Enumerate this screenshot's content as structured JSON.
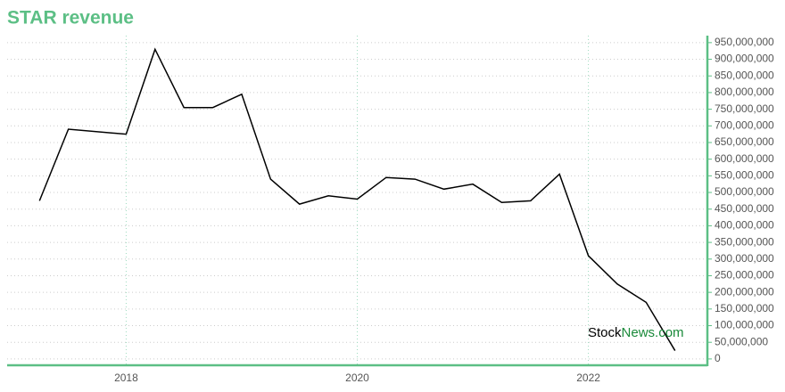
{
  "chart_data": {
    "type": "line",
    "title": "STAR revenue",
    "x": [
      2017.25,
      2017.5,
      2018.0,
      2018.25,
      2018.5,
      2018.75,
      2019.0,
      2019.25,
      2019.5,
      2019.75,
      2020.0,
      2020.25,
      2020.5,
      2020.75,
      2021.0,
      2021.25,
      2021.5,
      2021.75,
      2022.0,
      2022.25,
      2022.5,
      2022.75
    ],
    "series": [
      {
        "color": "#000000",
        "values": [
          475000000,
          690000000,
          675000000,
          930000000,
          755000000,
          755000000,
          795000000,
          540000000,
          465000000,
          490000000,
          480000000,
          545000000,
          540000000,
          510000000,
          525000000,
          470000000,
          475000000,
          555000000,
          310000000,
          225000000,
          170000000,
          25000000
        ]
      }
    ],
    "xlim": [
      2016.97,
      2023.03
    ],
    "xticks": [
      2018,
      2020,
      2022
    ],
    "ylim": [
      -19000000,
      971000000
    ],
    "yticks": [
      0,
      {
        "value": 50000000,
        "label": "50,000,000"
      },
      {
        "value": 100000000,
        "label": "100,000,000"
      },
      {
        "value": 150000000,
        "label": "150,000,000"
      },
      {
        "value": 200000000,
        "label": "200,000,000"
      },
      {
        "value": 250000000,
        "label": "250,000,000"
      },
      {
        "value": 300000000,
        "label": "300,000,000"
      },
      {
        "value": 350000000,
        "label": "350,000,000"
      },
      {
        "value": 400000000,
        "label": "400,000,000"
      },
      {
        "value": 450000000,
        "label": "450,000,000"
      },
      {
        "value": 500000000,
        "label": "500,000,000"
      },
      {
        "value": 550000000,
        "label": "550,000,000"
      },
      {
        "value": 600000000,
        "label": "600,000,000"
      },
      {
        "value": 650000000,
        "label": "650,000,000"
      },
      {
        "value": 700000000,
        "label": "700,000,000"
      },
      {
        "value": 750000000,
        "label": "750,000,000"
      },
      {
        "value": 800000000,
        "label": "800,000,000"
      },
      {
        "value": 850000000,
        "label": "850,000,000"
      },
      {
        "value": 900000000,
        "label": "900,000,000"
      },
      {
        "value": 950000000,
        "label": "950,000,000"
      }
    ],
    "grid": true,
    "axis_color": "#5cbf85",
    "watermark": [
      "Stock",
      "News.com"
    ]
  }
}
